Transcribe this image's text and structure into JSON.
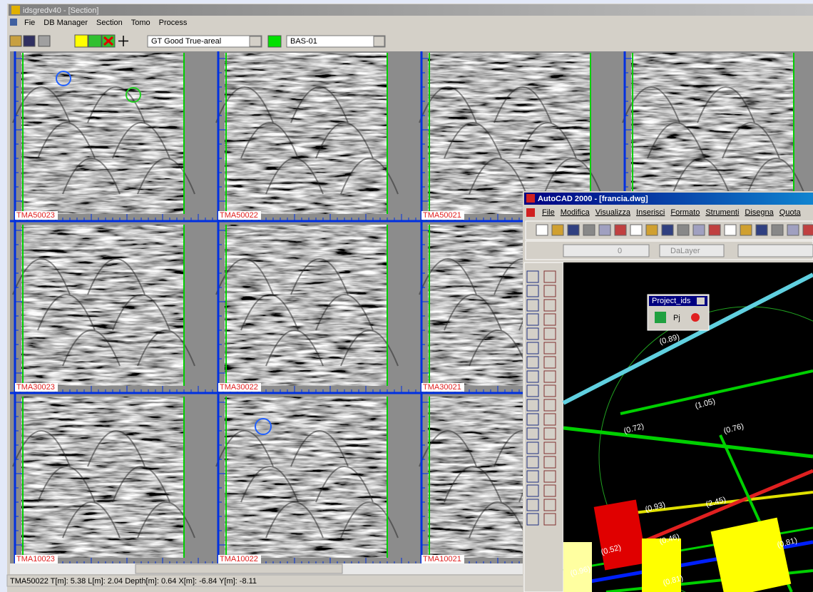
{
  "main_window": {
    "title": "idsgredv40 - [Section]",
    "menu": [
      "Fie",
      "DB Manager",
      "Section",
      "Tomo",
      "Process"
    ],
    "layer_select": "GT Good True-areal",
    "survey_select": "BAS-01",
    "panels": [
      [
        "TMA50023",
        "TMA50022",
        "TMA50021"
      ],
      [
        "TMA30023",
        "TMA30022",
        "TMA30021"
      ],
      [
        "TMA10023",
        "TMA10022",
        "TMA10021"
      ]
    ],
    "status": "TMA50022 T[m]: 5.38 L[m]: 2.04 Depth[m]: 0.64 X[m]: -6.84 Y[m]: -8.11"
  },
  "cad_window": {
    "title": "AutoCAD 2000 - [francia.dwg]",
    "menu": [
      "File",
      "Modifica",
      "Visualizza",
      "Inserisci",
      "Formato",
      "Strumenti",
      "Disegna",
      "Quota"
    ],
    "layer_zero": "0",
    "layer": "DaLayer",
    "palette": {
      "title": "Project_ids",
      "button": "Pj"
    },
    "labels": [
      "(0.89)",
      "(1.05)",
      "(0.72)",
      "(0.76)",
      "(0.93)",
      "(2.45)",
      "(0.46)",
      "(0.52)",
      "(0.96)",
      "(0.81)",
      "(0.81)"
    ]
  }
}
